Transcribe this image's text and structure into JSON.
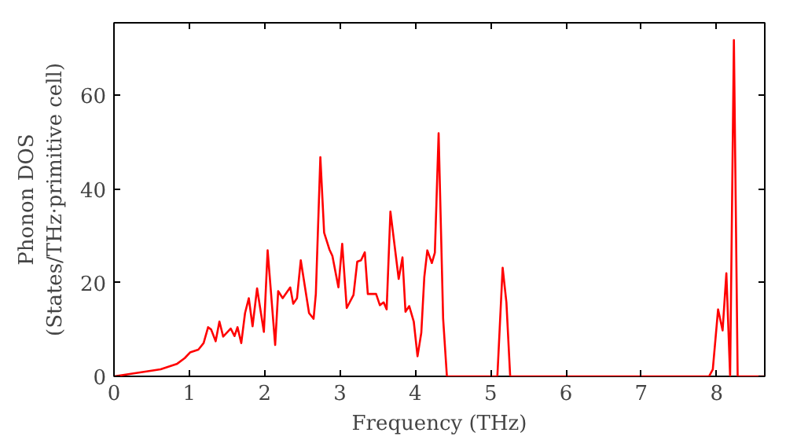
{
  "chart_data": {
    "type": "line",
    "xlabel": "Frequency (THz)",
    "ylabel": "Phonon DOS\n(States/THz·primitive cell)",
    "xlim": [
      0,
      8.64
    ],
    "ylim": [
      0,
      75.5
    ],
    "xticks": [
      0,
      1,
      2,
      3,
      4,
      5,
      6,
      7,
      8
    ],
    "yticks": [
      0,
      20,
      40,
      60
    ],
    "grid": false,
    "series": [
      {
        "color": "#ff0000",
        "x": [
          0,
          0.62,
          0.84,
          0.94,
          1.01,
          1.12,
          1.19,
          1.25,
          1.29,
          1.35,
          1.4,
          1.45,
          1.55,
          1.6,
          1.64,
          1.69,
          1.74,
          1.79,
          1.84,
          1.9,
          1.99,
          2.04,
          2.14,
          2.18,
          2.24,
          2.34,
          2.38,
          2.43,
          2.48,
          2.59,
          2.65,
          2.68,
          2.74,
          2.79,
          2.86,
          2.9,
          2.98,
          3.03,
          3.09,
          3.18,
          3.23,
          3.28,
          3.33,
          3.37,
          3.48,
          3.53,
          3.58,
          3.62,
          3.67,
          3.78,
          3.83,
          3.87,
          3.92,
          3.98,
          4.03,
          4.08,
          4.12,
          4.16,
          4.22,
          4.26,
          4.31,
          4.37,
          4.42,
          5.09,
          5.16,
          5.21,
          5.26,
          7.9,
          7.95,
          8.02,
          8.08,
          8.13,
          8.18,
          8.23,
          8.28,
          8.64
        ],
        "values": [
          0,
          1.5,
          2.7,
          3.9,
          5.1,
          5.7,
          7.1,
          10.5,
          10,
          7.5,
          11.7,
          8.5,
          10.2,
          8.6,
          10.5,
          7.1,
          13.5,
          16.7,
          10.7,
          18.8,
          9.5,
          26.9,
          6.7,
          18.2,
          16.7,
          19,
          15.5,
          16.7,
          24.8,
          13.5,
          12.3,
          17.6,
          46.8,
          30.7,
          27.1,
          25.7,
          19,
          28.3,
          14.6,
          17.4,
          24.5,
          24.8,
          26.5,
          17.6,
          17.6,
          15.2,
          15.8,
          14.3,
          35.2,
          20.8,
          25.4,
          13.8,
          15,
          11.7,
          4.3,
          9.3,
          21.2,
          26.9,
          24.2,
          26.4,
          51.9,
          12.3,
          0,
          0,
          23.2,
          15.8,
          0,
          0,
          1.5,
          14.3,
          9.8,
          22,
          0,
          71.8,
          0,
          0
        ]
      }
    ]
  }
}
